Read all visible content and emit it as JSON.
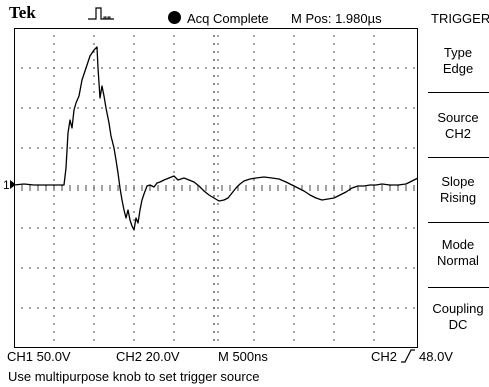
{
  "header": {
    "brand": "Tek",
    "acq_status": "Acq Complete",
    "m_pos": "M Pos: 1.980µs",
    "menu_title": "TRIGGER"
  },
  "trigger_menu": [
    {
      "label": "Type",
      "value": "Edge"
    },
    {
      "label": "Source",
      "value": "CH2"
    },
    {
      "label": "Slope",
      "value": "Rising"
    },
    {
      "label": "Mode",
      "value": "Normal"
    },
    {
      "label": "Coupling",
      "value": "DC"
    }
  ],
  "readouts": {
    "ch1": "CH1  50.0V",
    "ch2": "CH2  20.0V",
    "timebase": "M 500ns",
    "trigger": "CH2",
    "trigger_level": "48.0V"
  },
  "marker": {
    "channel": "1"
  },
  "message": "Use multipurpose knob to set trigger source"
}
